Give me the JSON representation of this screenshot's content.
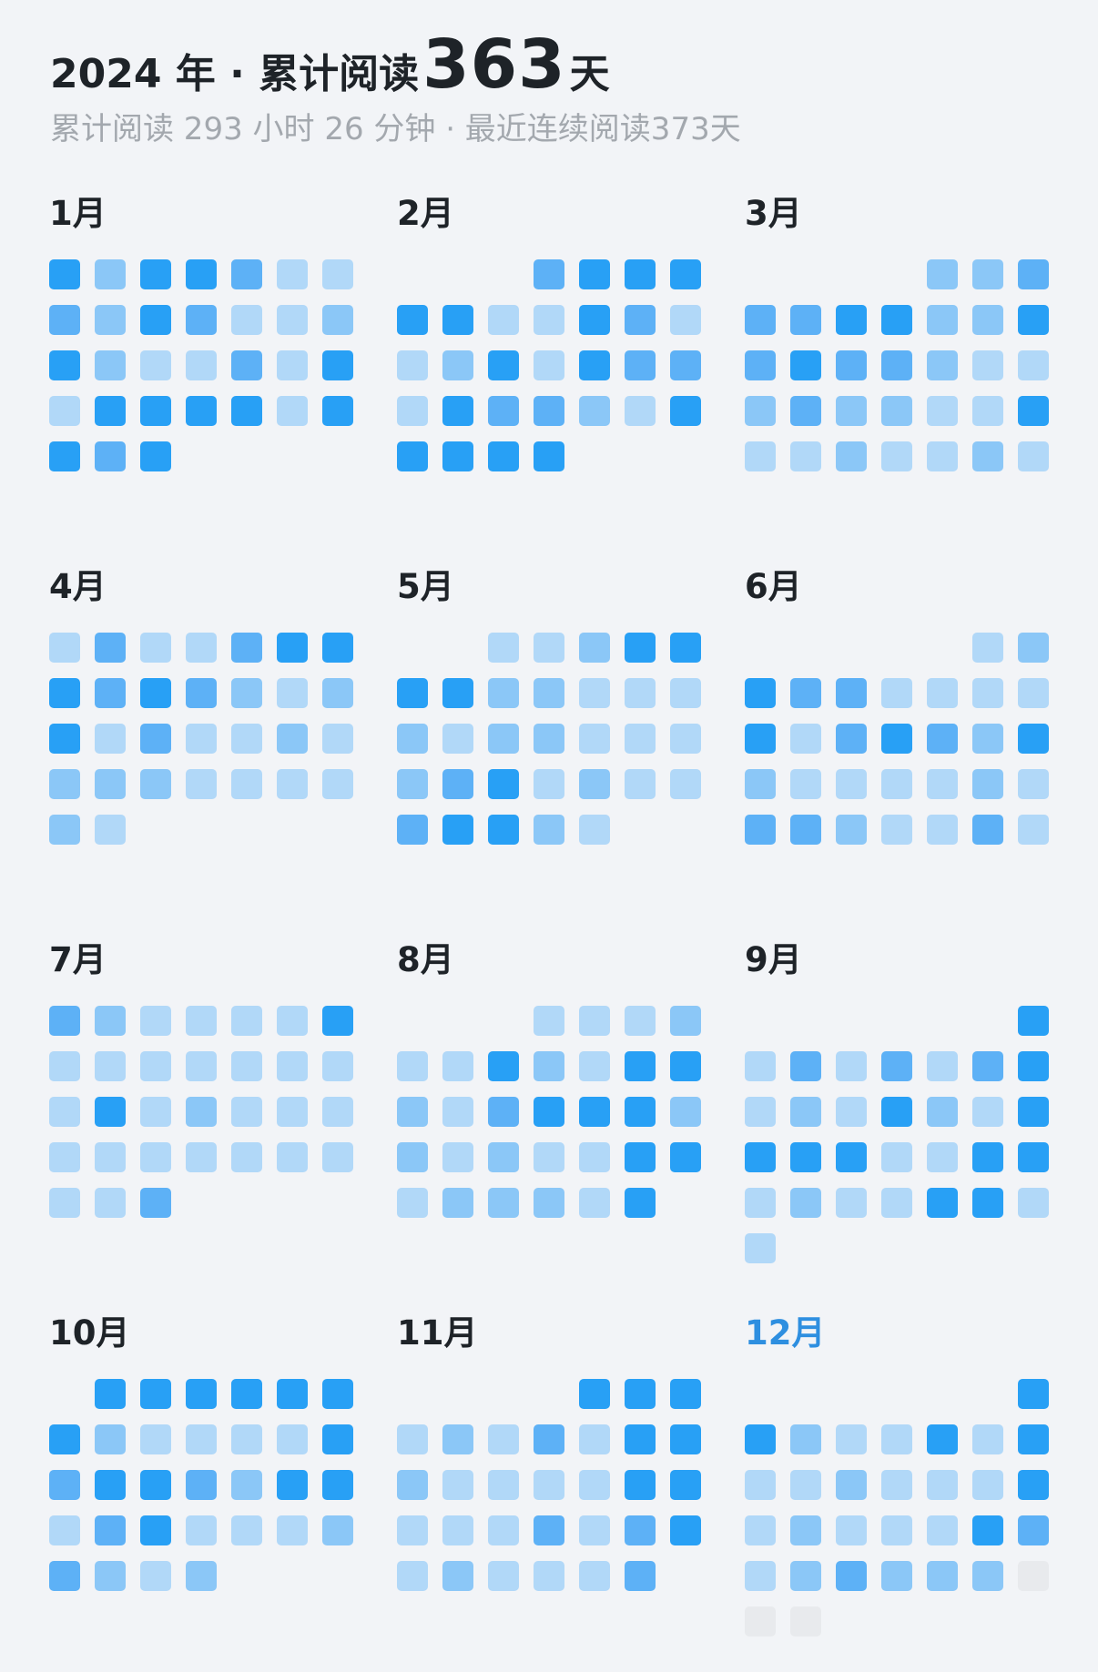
{
  "header": {
    "title_prefix": "2024 年 · 累计阅读",
    "title_count": "363",
    "title_suffix": "天",
    "subtitle": "累计阅读 293 小时 26 分钟 · 最近连续阅读373天"
  },
  "level_colors": {
    "0": "#e8eaed",
    "1": "#b1d8f8",
    "2": "#8bc7f7",
    "3": "#5db1f6",
    "4": "#28a0f5"
  },
  "current_month_color": "#2e8fe0",
  "months": [
    {
      "label": "1月",
      "current": false,
      "start_offset": 0,
      "days": [
        4,
        2,
        4,
        4,
        3,
        1,
        1,
        3,
        2,
        4,
        3,
        1,
        1,
        2,
        4,
        2,
        1,
        1,
        3,
        1,
        4,
        1,
        4,
        4,
        4,
        4,
        1,
        4,
        4,
        3,
        4
      ]
    },
    {
      "label": "2月",
      "current": false,
      "start_offset": 3,
      "days": [
        3,
        4,
        4,
        4,
        4,
        4,
        1,
        1,
        4,
        3,
        1,
        1,
        2,
        4,
        1,
        4,
        3,
        3,
        1,
        4,
        3,
        3,
        2,
        1,
        4,
        4,
        4,
        4,
        4
      ]
    },
    {
      "label": "3月",
      "current": false,
      "start_offset": 4,
      "days": [
        2,
        2,
        3,
        3,
        3,
        4,
        4,
        2,
        2,
        4,
        3,
        4,
        3,
        3,
        2,
        1,
        1,
        2,
        3,
        2,
        2,
        1,
        1,
        4,
        1,
        1,
        2,
        1,
        1,
        2,
        1
      ]
    },
    {
      "label": "4月",
      "current": false,
      "start_offset": 0,
      "days": [
        1,
        3,
        1,
        1,
        3,
        4,
        4,
        4,
        3,
        4,
        3,
        2,
        1,
        2,
        4,
        1,
        3,
        1,
        1,
        2,
        1,
        2,
        2,
        2,
        1,
        1,
        1,
        1,
        2,
        1
      ]
    },
    {
      "label": "5月",
      "current": false,
      "start_offset": 2,
      "days": [
        1,
        1,
        2,
        4,
        4,
        4,
        4,
        2,
        2,
        1,
        1,
        1,
        2,
        1,
        2,
        2,
        1,
        1,
        1,
        2,
        3,
        4,
        1,
        2,
        1,
        1,
        3,
        4,
        4,
        2,
        1
      ]
    },
    {
      "label": "6月",
      "current": false,
      "start_offset": 5,
      "days": [
        1,
        2,
        4,
        3,
        3,
        1,
        1,
        1,
        1,
        4,
        1,
        3,
        4,
        3,
        2,
        4,
        2,
        1,
        1,
        1,
        1,
        2,
        1,
        3,
        3,
        2,
        1,
        1,
        3,
        1
      ]
    },
    {
      "label": "7月",
      "current": false,
      "start_offset": 0,
      "days": [
        3,
        2,
        1,
        1,
        1,
        1,
        4,
        1,
        1,
        1,
        1,
        1,
        1,
        1,
        1,
        4,
        1,
        2,
        1,
        1,
        1,
        1,
        1,
        1,
        1,
        1,
        1,
        1,
        1,
        1,
        3
      ]
    },
    {
      "label": "8月",
      "current": false,
      "start_offset": 3,
      "days": [
        1,
        1,
        1,
        2,
        1,
        1,
        4,
        2,
        1,
        4,
        4,
        2,
        1,
        3,
        4,
        4,
        4,
        2,
        2,
        1,
        2,
        1,
        1,
        4,
        4,
        1,
        2,
        2,
        2,
        1,
        4
      ]
    },
    {
      "label": "9月",
      "current": false,
      "start_offset": 6,
      "days": [
        4,
        1,
        3,
        1,
        3,
        1,
        3,
        4,
        1,
        2,
        1,
        4,
        2,
        1,
        4,
        4,
        4,
        4,
        1,
        1,
        4,
        4,
        1,
        2,
        1,
        1,
        4,
        4,
        1,
        1
      ]
    },
    {
      "label": "10月",
      "current": false,
      "start_offset": 1,
      "days": [
        4,
        4,
        4,
        4,
        4,
        4,
        4,
        2,
        1,
        1,
        1,
        1,
        4,
        3,
        4,
        4,
        3,
        2,
        4,
        4,
        1,
        3,
        4,
        1,
        1,
        1,
        2,
        3,
        2,
        1,
        2
      ]
    },
    {
      "label": "11月",
      "current": false,
      "start_offset": 4,
      "days": [
        4,
        4,
        4,
        1,
        2,
        1,
        3,
        1,
        4,
        4,
        2,
        1,
        1,
        1,
        1,
        4,
        4,
        1,
        1,
        1,
        3,
        1,
        3,
        4,
        1,
        2,
        1,
        1,
        1,
        3
      ]
    },
    {
      "label": "12月",
      "current": true,
      "start_offset": 6,
      "days": [
        4,
        4,
        2,
        1,
        1,
        4,
        1,
        4,
        1,
        1,
        2,
        1,
        1,
        1,
        4,
        1,
        2,
        1,
        1,
        1,
        4,
        3,
        1,
        2,
        3,
        2,
        2,
        2,
        0,
        0,
        0
      ]
    }
  ]
}
